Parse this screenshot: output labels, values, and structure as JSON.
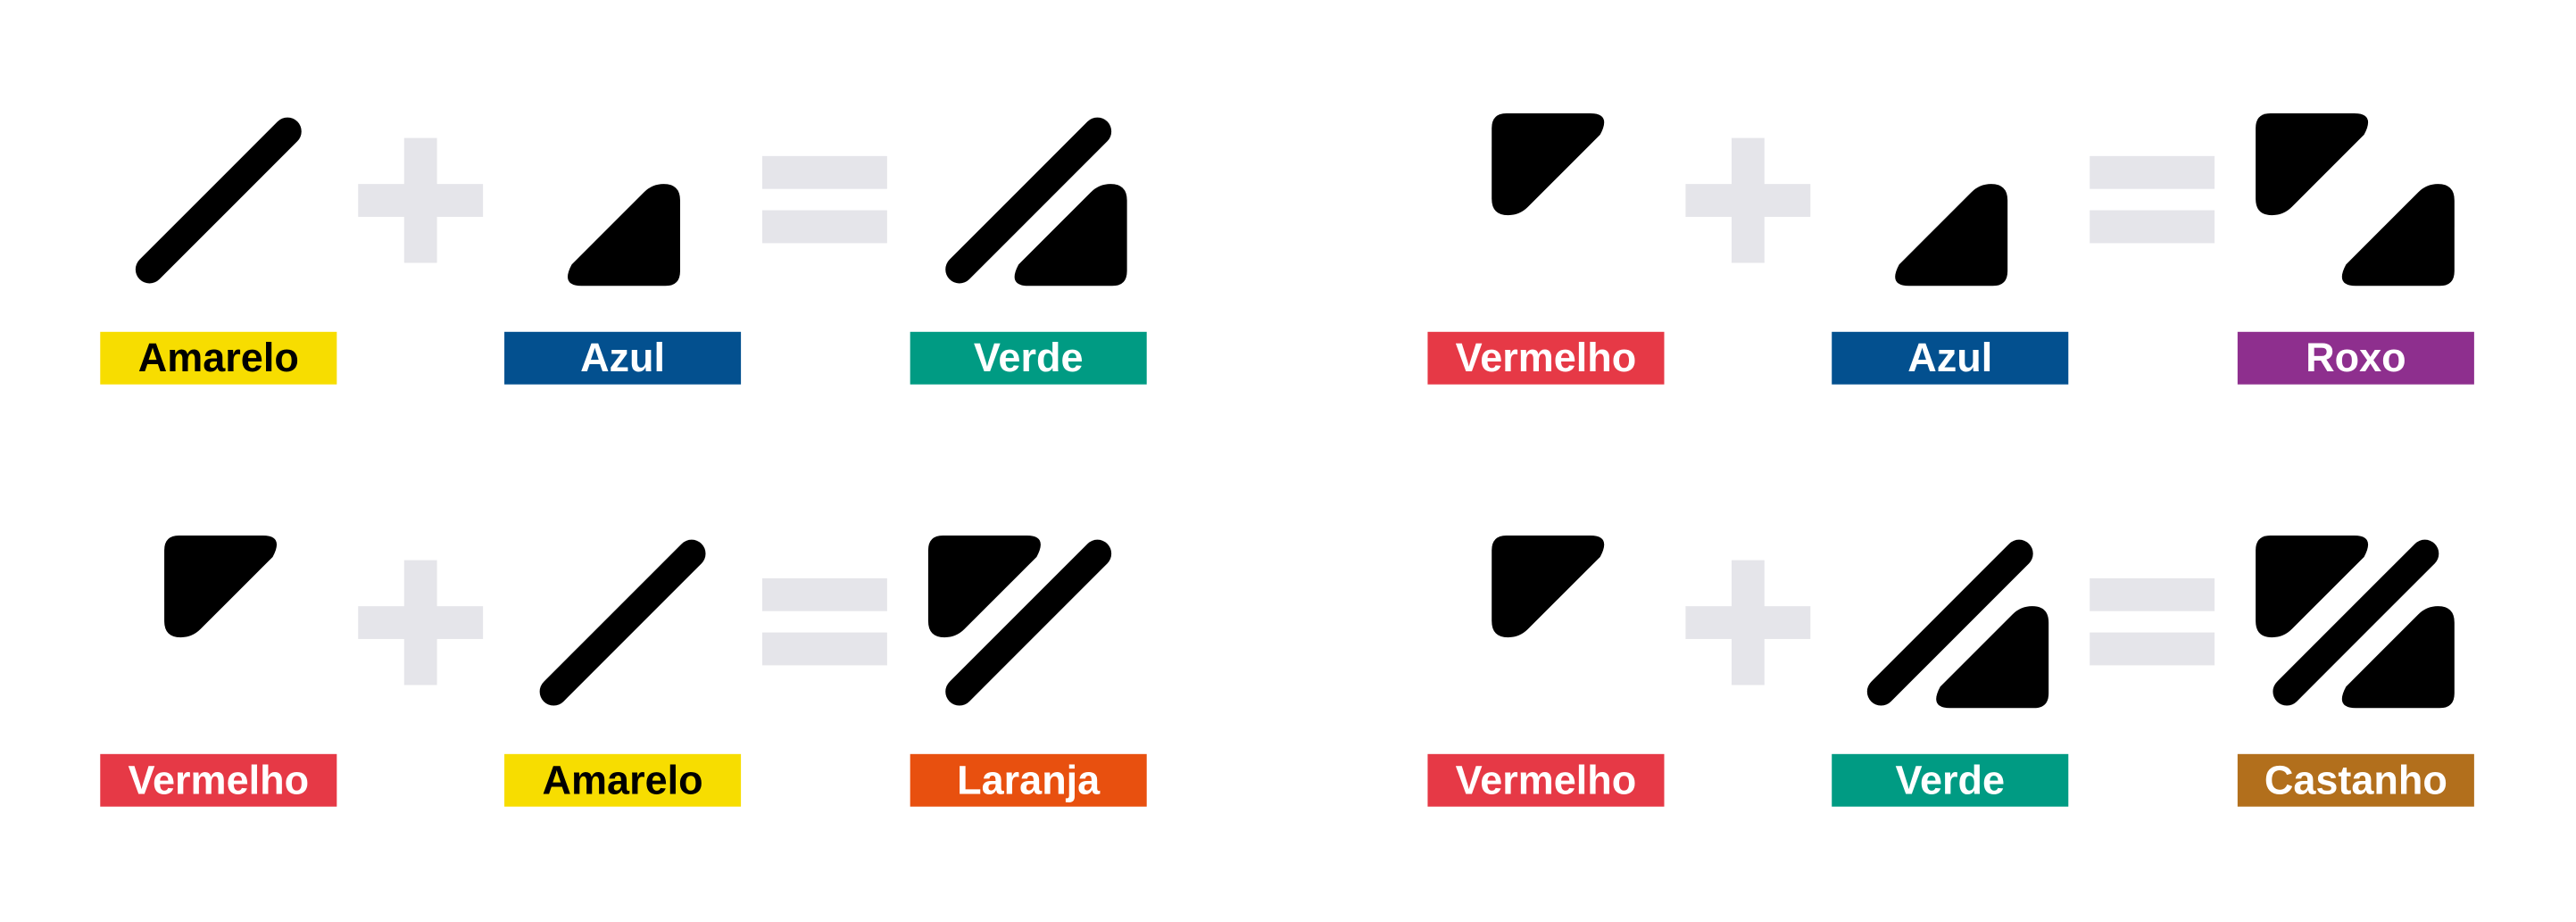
{
  "colors": {
    "symbol": "#000000",
    "operator": "#e5e5ea",
    "background": "#ffffff"
  },
  "equations": [
    {
      "a": {
        "label": "Amarelo",
        "bg": "#f7dd00",
        "fg": "#000000",
        "shapes": [
          "diagonal"
        ]
      },
      "b": {
        "label": "Azul",
        "bg": "#03508f",
        "fg": "#ffffff",
        "shapes": [
          "bottom-triangle"
        ]
      },
      "c": {
        "label": "Verde",
        "bg": "#009b83",
        "fg": "#ffffff",
        "shapes": [
          "diagonal",
          "bottom-triangle"
        ]
      }
    },
    {
      "a": {
        "label": "Vermelho",
        "bg": "#e63946",
        "fg": "#ffffff",
        "shapes": [
          "top-triangle"
        ]
      },
      "b": {
        "label": "Azul",
        "bg": "#03508f",
        "fg": "#ffffff",
        "shapes": [
          "bottom-triangle"
        ]
      },
      "c": {
        "label": "Roxo",
        "bg": "#8e2f8e",
        "fg": "#ffffff",
        "shapes": [
          "top-triangle",
          "bottom-triangle"
        ]
      }
    },
    {
      "a": {
        "label": "Vermelho",
        "bg": "#e63946",
        "fg": "#ffffff",
        "shapes": [
          "top-triangle"
        ]
      },
      "b": {
        "label": "Amarelo",
        "bg": "#f7dd00",
        "fg": "#000000",
        "shapes": [
          "diagonal"
        ]
      },
      "c": {
        "label": "Laranja",
        "bg": "#e8500f",
        "fg": "#ffffff",
        "shapes": [
          "top-triangle",
          "diagonal"
        ]
      }
    },
    {
      "a": {
        "label": "Vermelho",
        "bg": "#e63946",
        "fg": "#ffffff",
        "shapes": [
          "top-triangle"
        ]
      },
      "b": {
        "label": "Verde",
        "bg": "#009b83",
        "fg": "#ffffff",
        "shapes": [
          "diagonal",
          "bottom-triangle"
        ]
      },
      "c": {
        "label": "Castanho",
        "bg": "#b26f1c",
        "fg": "#ffffff",
        "shapes": [
          "top-triangle",
          "diagonal",
          "bottom-triangle"
        ]
      }
    }
  ]
}
